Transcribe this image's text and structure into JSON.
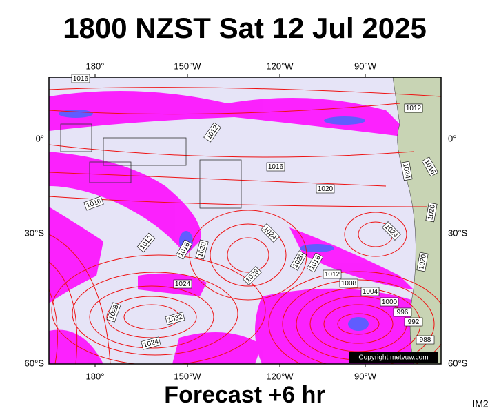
{
  "title": "1800 NZST Sat 12 Jul 2025",
  "footer": "Forecast +6 hr",
  "product_code": "IM2",
  "copyright": "Copyright metvuw.com",
  "longitude_labels": [
    "180°",
    "150°W",
    "120°W",
    "90°W"
  ],
  "latitude_labels": [
    "0°",
    "30°S",
    "60°S"
  ],
  "isobar_labels": [
    "1016",
    "1012",
    "1012",
    "1016",
    "1020",
    "1016",
    "1024",
    "1024",
    "1012",
    "1016",
    "1020",
    "1020",
    "1016",
    "1012",
    "1008",
    "1004",
    "1000",
    "996",
    "992",
    "988",
    "1028",
    "1024",
    "1032",
    "1028",
    "1024",
    "1020",
    "1024",
    "1016",
    "1020",
    "1012"
  ]
}
